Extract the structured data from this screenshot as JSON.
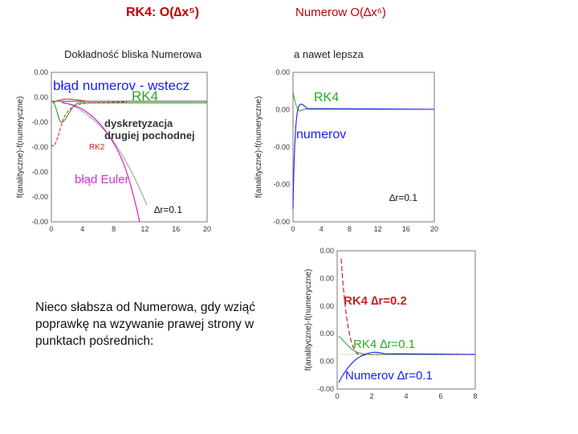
{
  "titles": {
    "rk4": "RK4: O(∆x⁵)",
    "numerow": "Numerow O(∆x⁶)"
  },
  "subtitles": {
    "left": "Dokładność bliska Numerowa",
    "right": "a nawet lepsza"
  },
  "note": "Nieco słabsza od Numerowa, gdy wziąć poprawkę na wzywanie prawej strony w punktach pośrednich:",
  "step_label": "∆r=0.1",
  "colors": {
    "title": "#c00000",
    "blue": "#1a1aff",
    "green": "#22aa22",
    "red": "#cc2222",
    "magenta": "#cc33cc"
  },
  "chart_data": [
    {
      "type": "line",
      "ylabel": "f(analityczne)-f(numeryczne)",
      "x_ticks": [
        "0",
        "4",
        "8",
        "12",
        "16",
        "20"
      ],
      "y_ticks": [
        "0.00",
        "0.00",
        "-0.00",
        "-0.00",
        "-0.00",
        "-0.00",
        "-0.00"
      ],
      "xlim": [
        0,
        20
      ],
      "annotations": [
        "błąd numerov - wstecz",
        "RK4",
        "dyskretyzacja",
        "drugiej pochodnej",
        "RK2",
        "błąd Euler"
      ],
      "series": [
        {
          "name": "numerov - wstecz",
          "x": [
            0,
            1,
            2,
            3,
            4,
            6,
            8,
            12,
            16,
            20
          ],
          "y": [
            0,
            0,
            0,
            0,
            0,
            0,
            0,
            0,
            0,
            0
          ]
        },
        {
          "name": "RK4",
          "x": [
            0,
            0.5,
            1,
            1.5,
            2,
            3,
            4,
            5,
            6,
            8,
            12,
            16,
            20
          ],
          "y": [
            0,
            -0.3,
            -0.6,
            -0.55,
            -0.3,
            -0.08,
            0,
            0,
            0,
            0,
            0,
            0,
            0
          ]
        },
        {
          "name": "dyskretyzacja drugiej pochodnej",
          "x": [
            0,
            1,
            2,
            3,
            4,
            5,
            6,
            7,
            8,
            9
          ],
          "y": [
            0,
            -0.1,
            -0.3,
            -0.6,
            -0.9,
            -1.3,
            -1.7,
            -2.1,
            -2.5,
            -3.0
          ]
        },
        {
          "name": "RK2",
          "x": [
            0,
            0.5,
            1,
            2,
            3,
            4,
            5,
            6,
            7,
            8
          ],
          "y": [
            -1.3,
            -1.5,
            -1.2,
            -0.8,
            -0.6,
            -0.5,
            -0.4,
            -0.3,
            -0.2,
            -0.15
          ]
        },
        {
          "name": "Euler",
          "x": [
            1,
            2,
            3,
            4,
            5,
            6,
            7,
            8,
            9,
            10
          ],
          "y": [
            0,
            -0.1,
            -0.3,
            -0.6,
            -1.0,
            -1.5,
            -2.1,
            -2.8,
            -3.6,
            -4.5
          ]
        }
      ]
    },
    {
      "type": "line",
      "ylabel": "f(analityczne)-f(numeryczne)",
      "x_ticks": [
        "0",
        "4",
        "8",
        "12",
        "16",
        "20"
      ],
      "y_ticks": [
        "0.00",
        "0.00",
        "-0.00",
        "-0.00",
        "-0.00"
      ],
      "xlim": [
        0,
        20
      ],
      "annotations": [
        "RK4",
        "numerov"
      ],
      "series": [
        {
          "name": "RK4",
          "x": [
            0,
            0.3,
            0.6,
            1,
            1.5,
            2,
            3,
            4,
            6,
            8,
            12,
            16,
            20
          ],
          "y": [
            0.5,
            0.25,
            0.08,
            0,
            -0.03,
            0,
            0,
            0,
            0,
            0,
            0,
            0,
            0
          ]
        },
        {
          "name": "numerov",
          "x": [
            0,
            0.3,
            0.6,
            1,
            1.5,
            2,
            3,
            4,
            6,
            8,
            12,
            16,
            20
          ],
          "y": [
            -2.2,
            -0.9,
            -0.3,
            -0.1,
            0.05,
            0.02,
            0,
            0,
            0,
            0,
            0,
            0,
            0
          ]
        }
      ]
    },
    {
      "type": "line",
      "ylabel": "f(analityczne)-f(numeryczne)",
      "x_ticks": [
        "0",
        "2",
        "4",
        "6",
        "8"
      ],
      "y_ticks": [
        "0.00",
        "0.00",
        "0.00",
        "0.00",
        "0.00",
        "-0.00"
      ],
      "xlim": [
        0,
        8
      ],
      "annotations": [
        "RK4 ∆r=0.2",
        "RK4 ∆r=0.1",
        "Numerov ∆r=0.1"
      ],
      "series": [
        {
          "name": "RK4 ∆r=0.2",
          "x": [
            0.2,
            0.4,
            0.6,
            0.8,
            1,
            1.2,
            1.6,
            2,
            3,
            4,
            6,
            8
          ],
          "y": [
            2.6,
            1.6,
            0.9,
            0.4,
            0.15,
            0.05,
            -0.05,
            0,
            0,
            0,
            0,
            0
          ]
        },
        {
          "name": "RK4 ∆r=0.1",
          "x": [
            0.1,
            0.3,
            0.5,
            0.7,
            1,
            1.5,
            2,
            3,
            4,
            6,
            8
          ],
          "y": [
            0.5,
            0.35,
            0.2,
            0.1,
            0.03,
            0,
            0,
            0,
            0,
            0,
            0
          ]
        },
        {
          "name": "Numerov ∆r=0.1",
          "x": [
            0.1,
            0.3,
            0.5,
            0.8,
            1.2,
            1.6,
            2,
            2.5,
            3,
            4,
            6,
            8
          ],
          "y": [
            -0.9,
            -0.6,
            -0.35,
            -0.15,
            -0.05,
            0.03,
            0.05,
            0.02,
            0,
            0,
            0,
            0
          ]
        }
      ]
    }
  ]
}
